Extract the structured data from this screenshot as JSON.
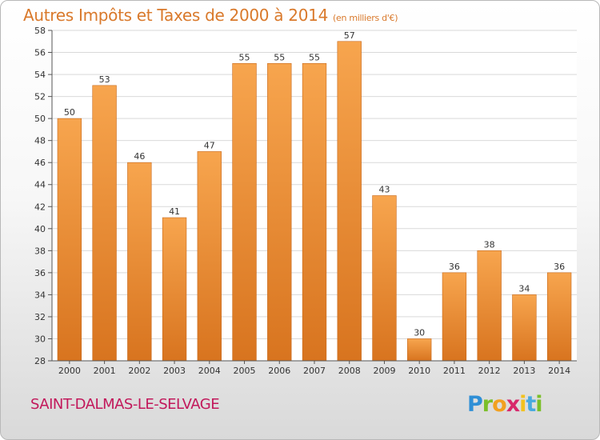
{
  "title": "Autres Impôts et Taxes de 2000 à 2014",
  "unit_note": "(en milliers d'€)",
  "commune": "SAINT-DALMAS-LE-SELVAGE",
  "logo": {
    "text": "Proxiti",
    "colors": [
      "#2f8fd6",
      "#7bbf2a",
      "#f2a01f",
      "#d8286b",
      "#f2c21f",
      "#49aadf",
      "#7bbf2a"
    ]
  },
  "chart_data": {
    "type": "bar",
    "categories": [
      "2000",
      "2001",
      "2002",
      "2003",
      "2004",
      "2005",
      "2006",
      "2007",
      "2008",
      "2009",
      "2010",
      "2011",
      "2012",
      "2013",
      "2014"
    ],
    "values": [
      50,
      53,
      46,
      41,
      47,
      55,
      55,
      55,
      57,
      43,
      30,
      36,
      38,
      34,
      36
    ],
    "data_labels": [
      "50",
      "53",
      "46",
      "41",
      "47",
      "55",
      "55",
      "55",
      "57",
      "43",
      "30",
      "36",
      "38",
      "34",
      "36"
    ],
    "ylim": [
      28,
      58
    ],
    "yticks": [
      28,
      30,
      32,
      34,
      36,
      38,
      40,
      42,
      44,
      46,
      48,
      50,
      52,
      54,
      56,
      58
    ],
    "grid": true,
    "bar_color_top": "#f7a54e",
    "bar_color_bottom": "#d8741f",
    "plot_background": "#ffffff",
    "grid_color": "#d9d9d9"
  }
}
